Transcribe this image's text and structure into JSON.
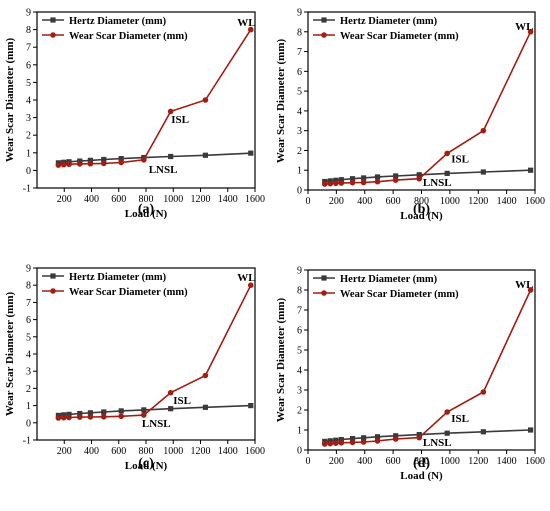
{
  "colors": {
    "hertz": "#3a3a3a",
    "wear": "#a21d12",
    "axis": "#000000"
  },
  "chart_data": [
    {
      "type": "line",
      "panel_label": "(a)",
      "xlabel": "Load (N)",
      "ylabel": "Wear Scar Diameter (mm)",
      "xlim": [
        0,
        1600
      ],
      "ylim": [
        -1,
        9
      ],
      "xticks": [
        "200",
        "400",
        "600",
        "800",
        "1000",
        "1200",
        "1400",
        "1600"
      ],
      "yticks": [
        "-1",
        "0",
        "1",
        "2",
        "3",
        "4",
        "5",
        "6",
        "7",
        "8",
        "9"
      ],
      "legend": "top-left",
      "series": [
        {
          "name": "Hertz Diameter (mm)",
          "color": "#3a3a3a",
          "marker": "square",
          "x": [
            157,
            196,
            235,
            314,
            392,
            490,
            618,
            784,
            981,
            1236,
            1569
          ],
          "y": [
            0.43,
            0.46,
            0.49,
            0.53,
            0.57,
            0.62,
            0.67,
            0.73,
            0.79,
            0.86,
            0.98
          ]
        },
        {
          "name": "Wear Scar Diameter (mm)",
          "color": "#a21d12",
          "marker": "circle",
          "x": [
            157,
            196,
            235,
            314,
            392,
            490,
            618,
            784,
            981,
            1236,
            1569
          ],
          "y": [
            0.3,
            0.33,
            0.35,
            0.37,
            0.38,
            0.4,
            0.45,
            0.6,
            3.35,
            4.0,
            8.0
          ]
        }
      ],
      "annotations": [
        {
          "text": "WL",
          "x": 1470,
          "y": 8.2
        },
        {
          "text": "ISL",
          "x": 985,
          "y": 2.7
        },
        {
          "text": "LNSL",
          "x": 820,
          "y": -0.15
        }
      ]
    },
    {
      "type": "line",
      "panel_label": "(b)",
      "xlabel": "Load (N)",
      "ylabel": "Wear Scar Diameter (mm)",
      "xlim": [
        0,
        1600
      ],
      "ylim": [
        0,
        9
      ],
      "xticks": [
        "0",
        "200",
        "400",
        "600",
        "800",
        "1000",
        "1200",
        "1400",
        "1600"
      ],
      "yticks": [
        "0",
        "1",
        "2",
        "3",
        "4",
        "5",
        "6",
        "7",
        "8",
        "9"
      ],
      "legend": "top-left",
      "series": [
        {
          "name": "Hertz Diameter (mm)",
          "color": "#3a3a3a",
          "marker": "square",
          "x": [
            118,
            157,
            196,
            235,
            314,
            392,
            490,
            618,
            784,
            981,
            1236,
            1569
          ],
          "y": [
            0.43,
            0.46,
            0.49,
            0.52,
            0.57,
            0.61,
            0.66,
            0.71,
            0.77,
            0.84,
            0.91,
            1.0
          ]
        },
        {
          "name": "Wear Scar Diameter (mm)",
          "color": "#a21d12",
          "marker": "circle",
          "x": [
            118,
            157,
            196,
            235,
            314,
            392,
            490,
            618,
            784,
            981,
            1236,
            1569
          ],
          "y": [
            0.3,
            0.32,
            0.34,
            0.35,
            0.37,
            0.38,
            0.42,
            0.5,
            0.57,
            1.85,
            3.0,
            8.0
          ]
        }
      ],
      "annotations": [
        {
          "text": "WL",
          "x": 1460,
          "y": 8.1
        },
        {
          "text": "ISL",
          "x": 1010,
          "y": 1.4
        },
        {
          "text": "LNSL",
          "x": 810,
          "y": 0.2
        }
      ]
    },
    {
      "type": "line",
      "panel_label": "(c)",
      "xlabel": "Load (N)",
      "ylabel": "Wear Scar Diameter (mm)",
      "xlim": [
        0,
        1600
      ],
      "ylim": [
        -1,
        9
      ],
      "xticks": [
        "200",
        "400",
        "600",
        "800",
        "1000",
        "1200",
        "1400",
        "1600"
      ],
      "yticks": [
        "-1",
        "0",
        "1",
        "2",
        "3",
        "4",
        "5",
        "6",
        "7",
        "8",
        "9"
      ],
      "legend": "top-left",
      "series": [
        {
          "name": "Hertz Diameter (mm)",
          "color": "#3a3a3a",
          "marker": "square",
          "x": [
            157,
            196,
            235,
            314,
            392,
            490,
            618,
            784,
            981,
            1236,
            1569
          ],
          "y": [
            0.43,
            0.46,
            0.49,
            0.54,
            0.58,
            0.63,
            0.69,
            0.75,
            0.82,
            0.9,
            1.0
          ]
        },
        {
          "name": "Wear Scar Diameter (mm)",
          "color": "#a21d12",
          "marker": "circle",
          "x": [
            157,
            196,
            235,
            314,
            392,
            490,
            618,
            784,
            981,
            1236,
            1569
          ],
          "y": [
            0.28,
            0.3,
            0.31,
            0.33,
            0.34,
            0.35,
            0.38,
            0.45,
            1.75,
            2.75,
            8.0
          ]
        }
      ],
      "annotations": [
        {
          "text": "WL",
          "x": 1470,
          "y": 8.25
        },
        {
          "text": "ISL",
          "x": 1000,
          "y": 1.1
        },
        {
          "text": "LNSL",
          "x": 770,
          "y": -0.25
        }
      ]
    },
    {
      "type": "line",
      "panel_label": "(d)",
      "xlabel": "Load (N)",
      "ylabel": "Wear Scar Diameter (mm)",
      "xlim": [
        0,
        1600
      ],
      "ylim": [
        0,
        9
      ],
      "xticks": [
        "0",
        "200",
        "400",
        "600",
        "800",
        "1000",
        "1200",
        "1400",
        "1600"
      ],
      "yticks": [
        "0",
        "1",
        "2",
        "3",
        "4",
        "5",
        "6",
        "7",
        "8",
        "9"
      ],
      "legend": "top-left",
      "series": [
        {
          "name": "Hertz Diameter (mm)",
          "color": "#3a3a3a",
          "marker": "square",
          "x": [
            118,
            157,
            196,
            235,
            314,
            392,
            490,
            618,
            784,
            981,
            1236,
            1569
          ],
          "y": [
            0.43,
            0.46,
            0.49,
            0.52,
            0.57,
            0.61,
            0.66,
            0.71,
            0.77,
            0.84,
            0.91,
            1.0
          ]
        },
        {
          "name": "Wear Scar Diameter (mm)",
          "color": "#a21d12",
          "marker": "circle",
          "x": [
            118,
            157,
            196,
            235,
            314,
            392,
            490,
            618,
            784,
            981,
            1236,
            1569
          ],
          "y": [
            0.3,
            0.32,
            0.34,
            0.36,
            0.38,
            0.4,
            0.45,
            0.55,
            0.62,
            1.9,
            2.9,
            8.0
          ]
        }
      ],
      "annotations": [
        {
          "text": "WL",
          "x": 1460,
          "y": 8.1
        },
        {
          "text": "ISL",
          "x": 1010,
          "y": 1.4
        },
        {
          "text": "LNSL",
          "x": 810,
          "y": 0.2
        }
      ]
    }
  ]
}
